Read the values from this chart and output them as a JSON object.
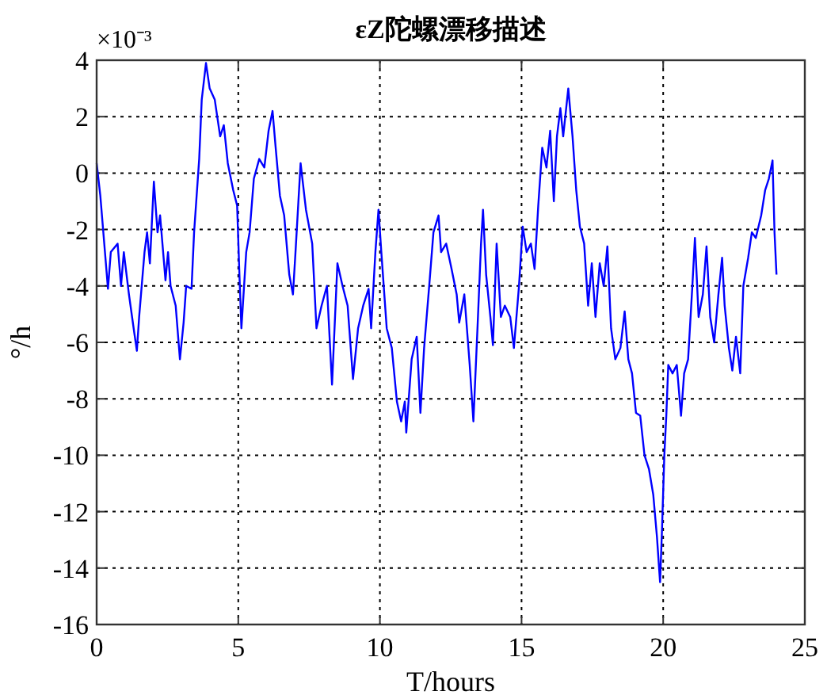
{
  "chart_data": {
    "type": "line",
    "title": "εZ陀螺漂移描述",
    "xlabel": "T/hours",
    "ylabel": "°/h",
    "annotations": [
      "×10⁻³"
    ],
    "xlim": [
      0,
      25
    ],
    "ylim": [
      -16,
      4
    ],
    "xticks": [
      0,
      5,
      10,
      15,
      20,
      25
    ],
    "yticks": [
      -16,
      -14,
      -12,
      -10,
      -8,
      -6,
      -4,
      -2,
      0,
      2,
      4
    ],
    "grid": true,
    "series": [
      {
        "color": "#0000ff",
        "x": [
          0,
          0.13,
          0.4,
          0.5,
          0.74,
          0.86,
          0.96,
          1.14,
          1.32,
          1.42,
          1.5,
          1.69,
          1.78,
          1.88,
          2.02,
          2.15,
          2.24,
          2.43,
          2.52,
          2.61,
          2.79,
          2.94,
          3.07,
          3.16,
          3.35,
          3.44,
          3.62,
          3.71,
          3.86,
          3.99,
          4.17,
          4.36,
          4.49,
          4.63,
          4.82,
          4.96,
          5.04,
          5.11,
          5.28,
          5.4,
          5.55,
          5.74,
          5.92,
          6.07,
          6.21,
          6.32,
          6.47,
          6.62,
          6.8,
          6.93,
          7.02,
          7.2,
          7.39,
          7.61,
          7.76,
          7.94,
          8.13,
          8.31,
          8.5,
          8.68,
          8.86,
          9.05,
          9.23,
          9.41,
          9.6,
          9.69,
          9.84,
          9.95,
          10.05,
          10.24,
          10.42,
          10.6,
          10.75,
          10.88,
          10.93,
          11.12,
          11.3,
          11.43,
          11.56,
          11.74,
          11.89,
          12.07,
          12.16,
          12.34,
          12.53,
          12.71,
          12.8,
          12.98,
          13.17,
          13.3,
          13.44,
          13.57,
          13.64,
          13.75,
          13.9,
          13.99,
          14.12,
          14.27,
          14.41,
          14.6,
          14.73,
          14.91,
          15.04,
          15.18,
          15.33,
          15.46,
          15.59,
          15.73,
          15.88,
          16.01,
          16.14,
          16.25,
          16.37,
          16.47,
          16.65,
          16.8,
          16.93,
          17.06,
          17.21,
          17.35,
          17.48,
          17.61,
          17.76,
          17.9,
          18.03,
          18.16,
          18.31,
          18.49,
          18.64,
          18.77,
          18.9,
          19.04,
          19.19,
          19.34,
          19.5,
          19.65,
          19.78,
          19.89,
          19.96,
          20.04,
          20.11,
          20.18,
          20.33,
          20.48,
          20.63,
          20.74,
          20.88,
          21.03,
          21.12,
          21.25,
          21.4,
          21.53,
          21.66,
          21.8,
          21.95,
          22.08,
          22.17,
          22.32,
          22.44,
          22.57,
          22.72,
          22.83,
          23.0,
          23.13,
          23.27,
          23.46,
          23.6,
          23.73,
          23.86,
          23.93,
          24.0
        ],
        "values": [
          0.35,
          -0.8,
          -4.1,
          -2.8,
          -2.5,
          -4.0,
          -2.8,
          -4.3,
          -5.6,
          -6.3,
          -5.1,
          -2.8,
          -2.1,
          -3.2,
          -0.3,
          -2.1,
          -1.5,
          -3.8,
          -2.8,
          -4.0,
          -4.7,
          -6.6,
          -5.3,
          -4.0,
          -4.1,
          -2.1,
          0.5,
          2.6,
          3.9,
          3.0,
          2.6,
          1.3,
          1.7,
          0.35,
          -0.6,
          -1.15,
          -3.6,
          -5.5,
          -2.8,
          -2.1,
          -0.2,
          0.5,
          0.2,
          1.5,
          2.2,
          0.9,
          -0.8,
          -1.5,
          -3.6,
          -4.3,
          -2.8,
          0.35,
          -1.3,
          -2.5,
          -5.5,
          -4.7,
          -4.0,
          -7.5,
          -3.2,
          -4.0,
          -4.7,
          -7.3,
          -5.5,
          -4.7,
          -4.1,
          -5.5,
          -2.8,
          -1.3,
          -2.8,
          -5.5,
          -6.2,
          -8.1,
          -8.8,
          -8.1,
          -9.2,
          -6.6,
          -5.8,
          -8.5,
          -6.2,
          -4.0,
          -2.1,
          -1.5,
          -2.8,
          -2.5,
          -3.4,
          -4.3,
          -5.3,
          -4.3,
          -6.8,
          -8.8,
          -5.6,
          -2.5,
          -1.3,
          -3.6,
          -5.1,
          -6.1,
          -2.5,
          -5.1,
          -4.7,
          -5.1,
          -6.2,
          -4.0,
          -1.9,
          -2.8,
          -2.5,
          -3.4,
          -1.15,
          0.9,
          0.2,
          1.5,
          -1.0,
          1.3,
          2.3,
          1.3,
          3.0,
          1.3,
          -0.6,
          -1.9,
          -2.5,
          -4.7,
          -3.2,
          -5.1,
          -3.2,
          -4.0,
          -2.6,
          -5.5,
          -6.6,
          -6.2,
          -4.9,
          -6.6,
          -7.1,
          -8.5,
          -8.6,
          -10.0,
          -10.5,
          -11.4,
          -12.9,
          -14.5,
          -12.6,
          -10.0,
          -8.6,
          -6.8,
          -7.1,
          -6.8,
          -8.6,
          -7.1,
          -6.6,
          -4.0,
          -2.3,
          -5.1,
          -4.3,
          -2.6,
          -5.1,
          -6.0,
          -4.3,
          -3.0,
          -4.7,
          -6.2,
          -7.0,
          -5.8,
          -7.1,
          -4.0,
          -3.0,
          -2.1,
          -2.3,
          -1.5,
          -0.6,
          -0.2,
          0.45,
          -2.1,
          -3.6
        ]
      }
    ]
  }
}
